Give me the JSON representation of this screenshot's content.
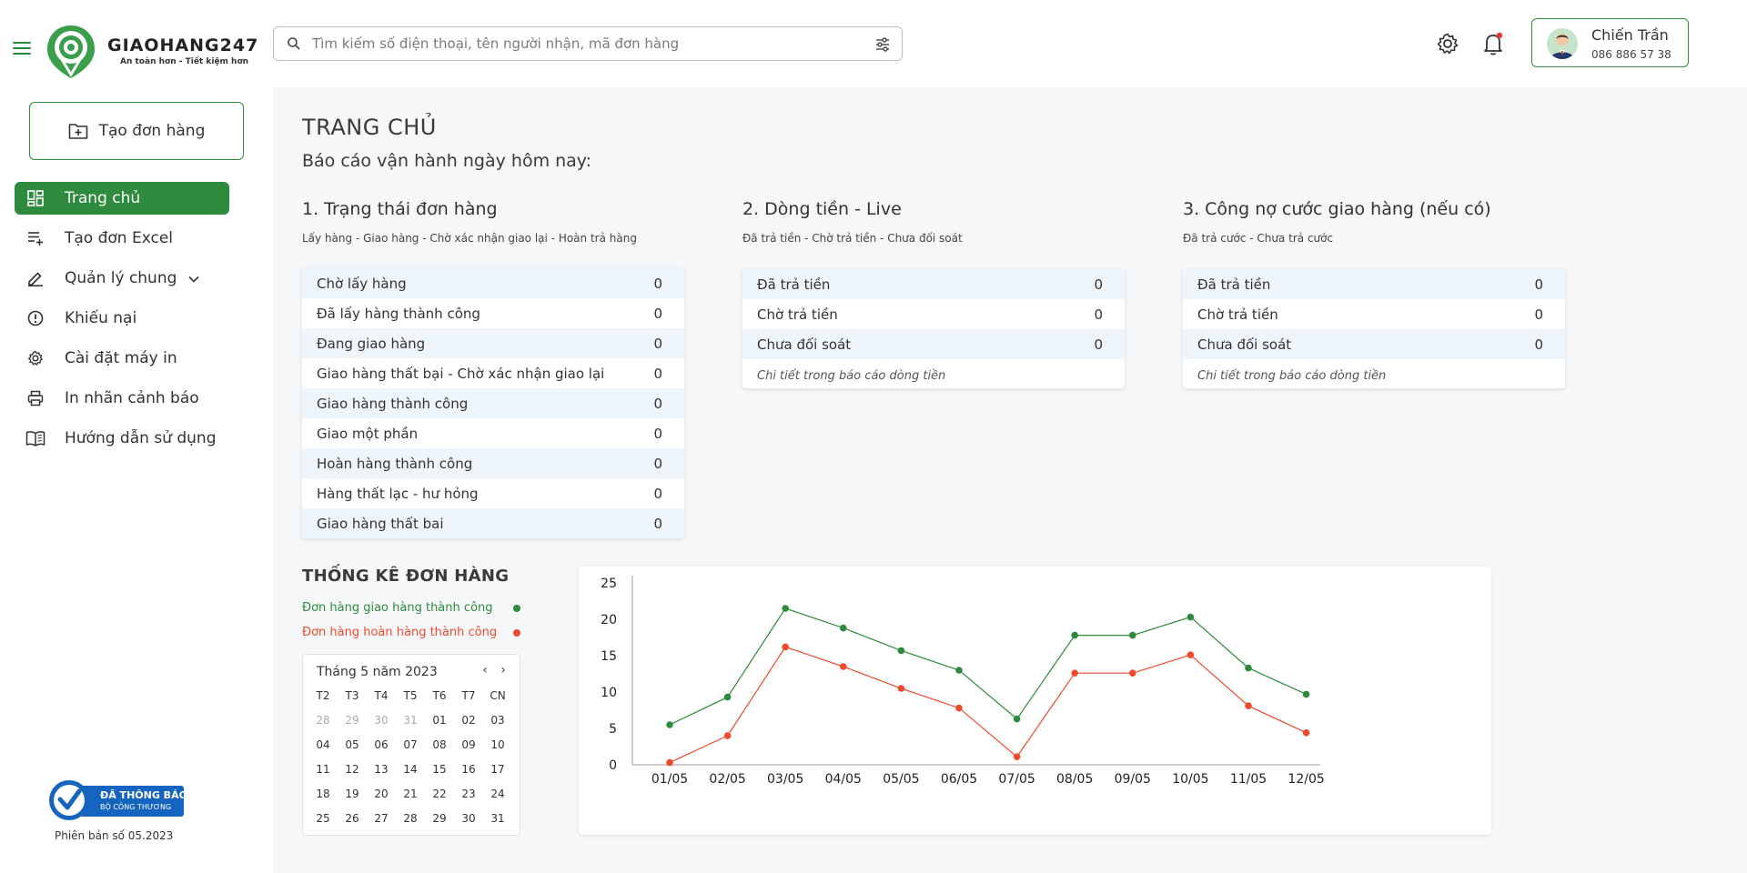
{
  "app": {
    "brand": "GIAOHANG247",
    "slogan": "An toàn hơn - Tiết kiệm hơn",
    "accent": "#2e8b3d"
  },
  "header": {
    "search_placeholder": "Tìm kiếm số điện thoại, tên người nhận, mã đơn hàng",
    "user_name": "Chiến Trần",
    "user_phone": "086 886 57 38",
    "notification_dot_color": "#e53935"
  },
  "sidebar": {
    "create_label": "Tạo đơn hàng",
    "items": [
      {
        "label": "Trang chủ",
        "icon": "dashboard-icon",
        "active": true
      },
      {
        "label": "Tạo đơn Excel",
        "icon": "playlist-add-icon"
      },
      {
        "label": "Quản lý chung",
        "icon": "edit-icon",
        "has_submenu": true
      },
      {
        "label": "Khiếu nại",
        "icon": "alert-circle-icon"
      },
      {
        "label": "Cài đặt máy in",
        "icon": "gear-icon"
      },
      {
        "label": "In nhãn cảnh báo",
        "icon": "printer-icon"
      },
      {
        "label": "Hướng dẫn sử dụng",
        "icon": "book-icon"
      }
    ],
    "badge_line1": "ĐÃ THÔNG BÁO",
    "badge_line2": "BỘ CÔNG THƯƠNG",
    "version": "Phiên bản số 05.2023"
  },
  "main": {
    "title": "TRANG CHỦ",
    "subtitle": "Báo cáo vận hành ngày hôm nay:",
    "sections": [
      {
        "title": "1. Trạng thái đơn hàng",
        "sub": "Lấy hàng - Giao hàng - Chờ xác nhận giao lại - Hoàn trả hàng",
        "rows": [
          {
            "k": "Chờ lấy hàng",
            "v": "0"
          },
          {
            "k": "Đã lấy hàng thành công",
            "v": "0"
          },
          {
            "k": "Đang giao hàng",
            "v": "0"
          },
          {
            "k": "Giao hàng thất bại - Chờ xác nhận giao lại",
            "v": "0"
          },
          {
            "k": "Giao hàng thành công",
            "v": "0"
          },
          {
            "k": "Giao một phần",
            "v": "0"
          },
          {
            "k": "Hoàn hàng thành công",
            "v": "0"
          },
          {
            "k": "Hàng thất lạc - hư hỏng",
            "v": "0"
          },
          {
            "k": "Giao hàng thất bai",
            "v": "0"
          }
        ]
      },
      {
        "title": "2. Dòng tiền - Live",
        "sub": "Đã trả tiền - Chờ trả tiền - Chưa đối soát",
        "rows": [
          {
            "k": "Đã trả tiền",
            "v": "0"
          },
          {
            "k": "Chờ trả tiền",
            "v": "0"
          },
          {
            "k": "Chưa đối soát",
            "v": "0"
          }
        ],
        "note": "Chi tiết trong báo cáo dòng tiền"
      },
      {
        "title": "3. Công nợ cước giao hàng (nếu có)",
        "sub": "Đã trả cước - Chưa trả cước",
        "rows": [
          {
            "k": "Đã trả tiền",
            "v": "0"
          },
          {
            "k": "Chờ trả tiền",
            "v": "0"
          },
          {
            "k": "Chưa đối soát",
            "v": "0"
          }
        ],
        "note": "Chi tiết trong báo cáo dòng tiền"
      }
    ],
    "stats_title": "THỐNG KÊ ĐƠN HÀNG",
    "legend": [
      {
        "label": "Đơn hàng giao hàng thành công",
        "color": "#2e8b3d"
      },
      {
        "label": "Đơn hàng hoàn hàng thành công",
        "color": "#f04a2e"
      }
    ],
    "calendar": {
      "month_label": "Tháng 5 năm 2023",
      "headers": [
        "T2",
        "T3",
        "T4",
        "T5",
        "T6",
        "T7",
        "CN"
      ],
      "weeks": [
        [
          "28",
          "29",
          "30",
          "31",
          "01",
          "02",
          "03"
        ],
        [
          "04",
          "05",
          "06",
          "07",
          "08",
          "09",
          "10"
        ],
        [
          "11",
          "12",
          "13",
          "14",
          "15",
          "16",
          "17"
        ],
        [
          "18",
          "19",
          "20",
          "21",
          "22",
          "23",
          "24"
        ],
        [
          "25",
          "26",
          "27",
          "28",
          "29",
          "30",
          "31"
        ]
      ],
      "muted_first_row_count": 4
    }
  },
  "chart_data": {
    "type": "line",
    "title": "",
    "xlabel": "",
    "ylabel": "",
    "x": [
      "01/05",
      "02/05",
      "03/05",
      "04/05",
      "05/05",
      "06/05",
      "07/05",
      "08/05",
      "09/05",
      "10/05",
      "11/05",
      "12/05"
    ],
    "ylim": [
      0,
      25
    ],
    "yticks": [
      0,
      5,
      10,
      15,
      20,
      25
    ],
    "grid": false,
    "series": [
      {
        "name": "Đơn hàng giao hàng thành công",
        "color": "#2e8b3d",
        "values": [
          5.5,
          9.3,
          21.5,
          18.8,
          15.7,
          13.0,
          6.3,
          17.8,
          17.8,
          20.3,
          13.3,
          9.7
        ]
      },
      {
        "name": "Đơn hàng hoàn hàng thành công",
        "color": "#f04a2e",
        "values": [
          0.3,
          4.0,
          16.2,
          13.5,
          10.5,
          7.8,
          1.1,
          12.6,
          12.6,
          15.1,
          8.1,
          4.4
        ]
      }
    ]
  }
}
